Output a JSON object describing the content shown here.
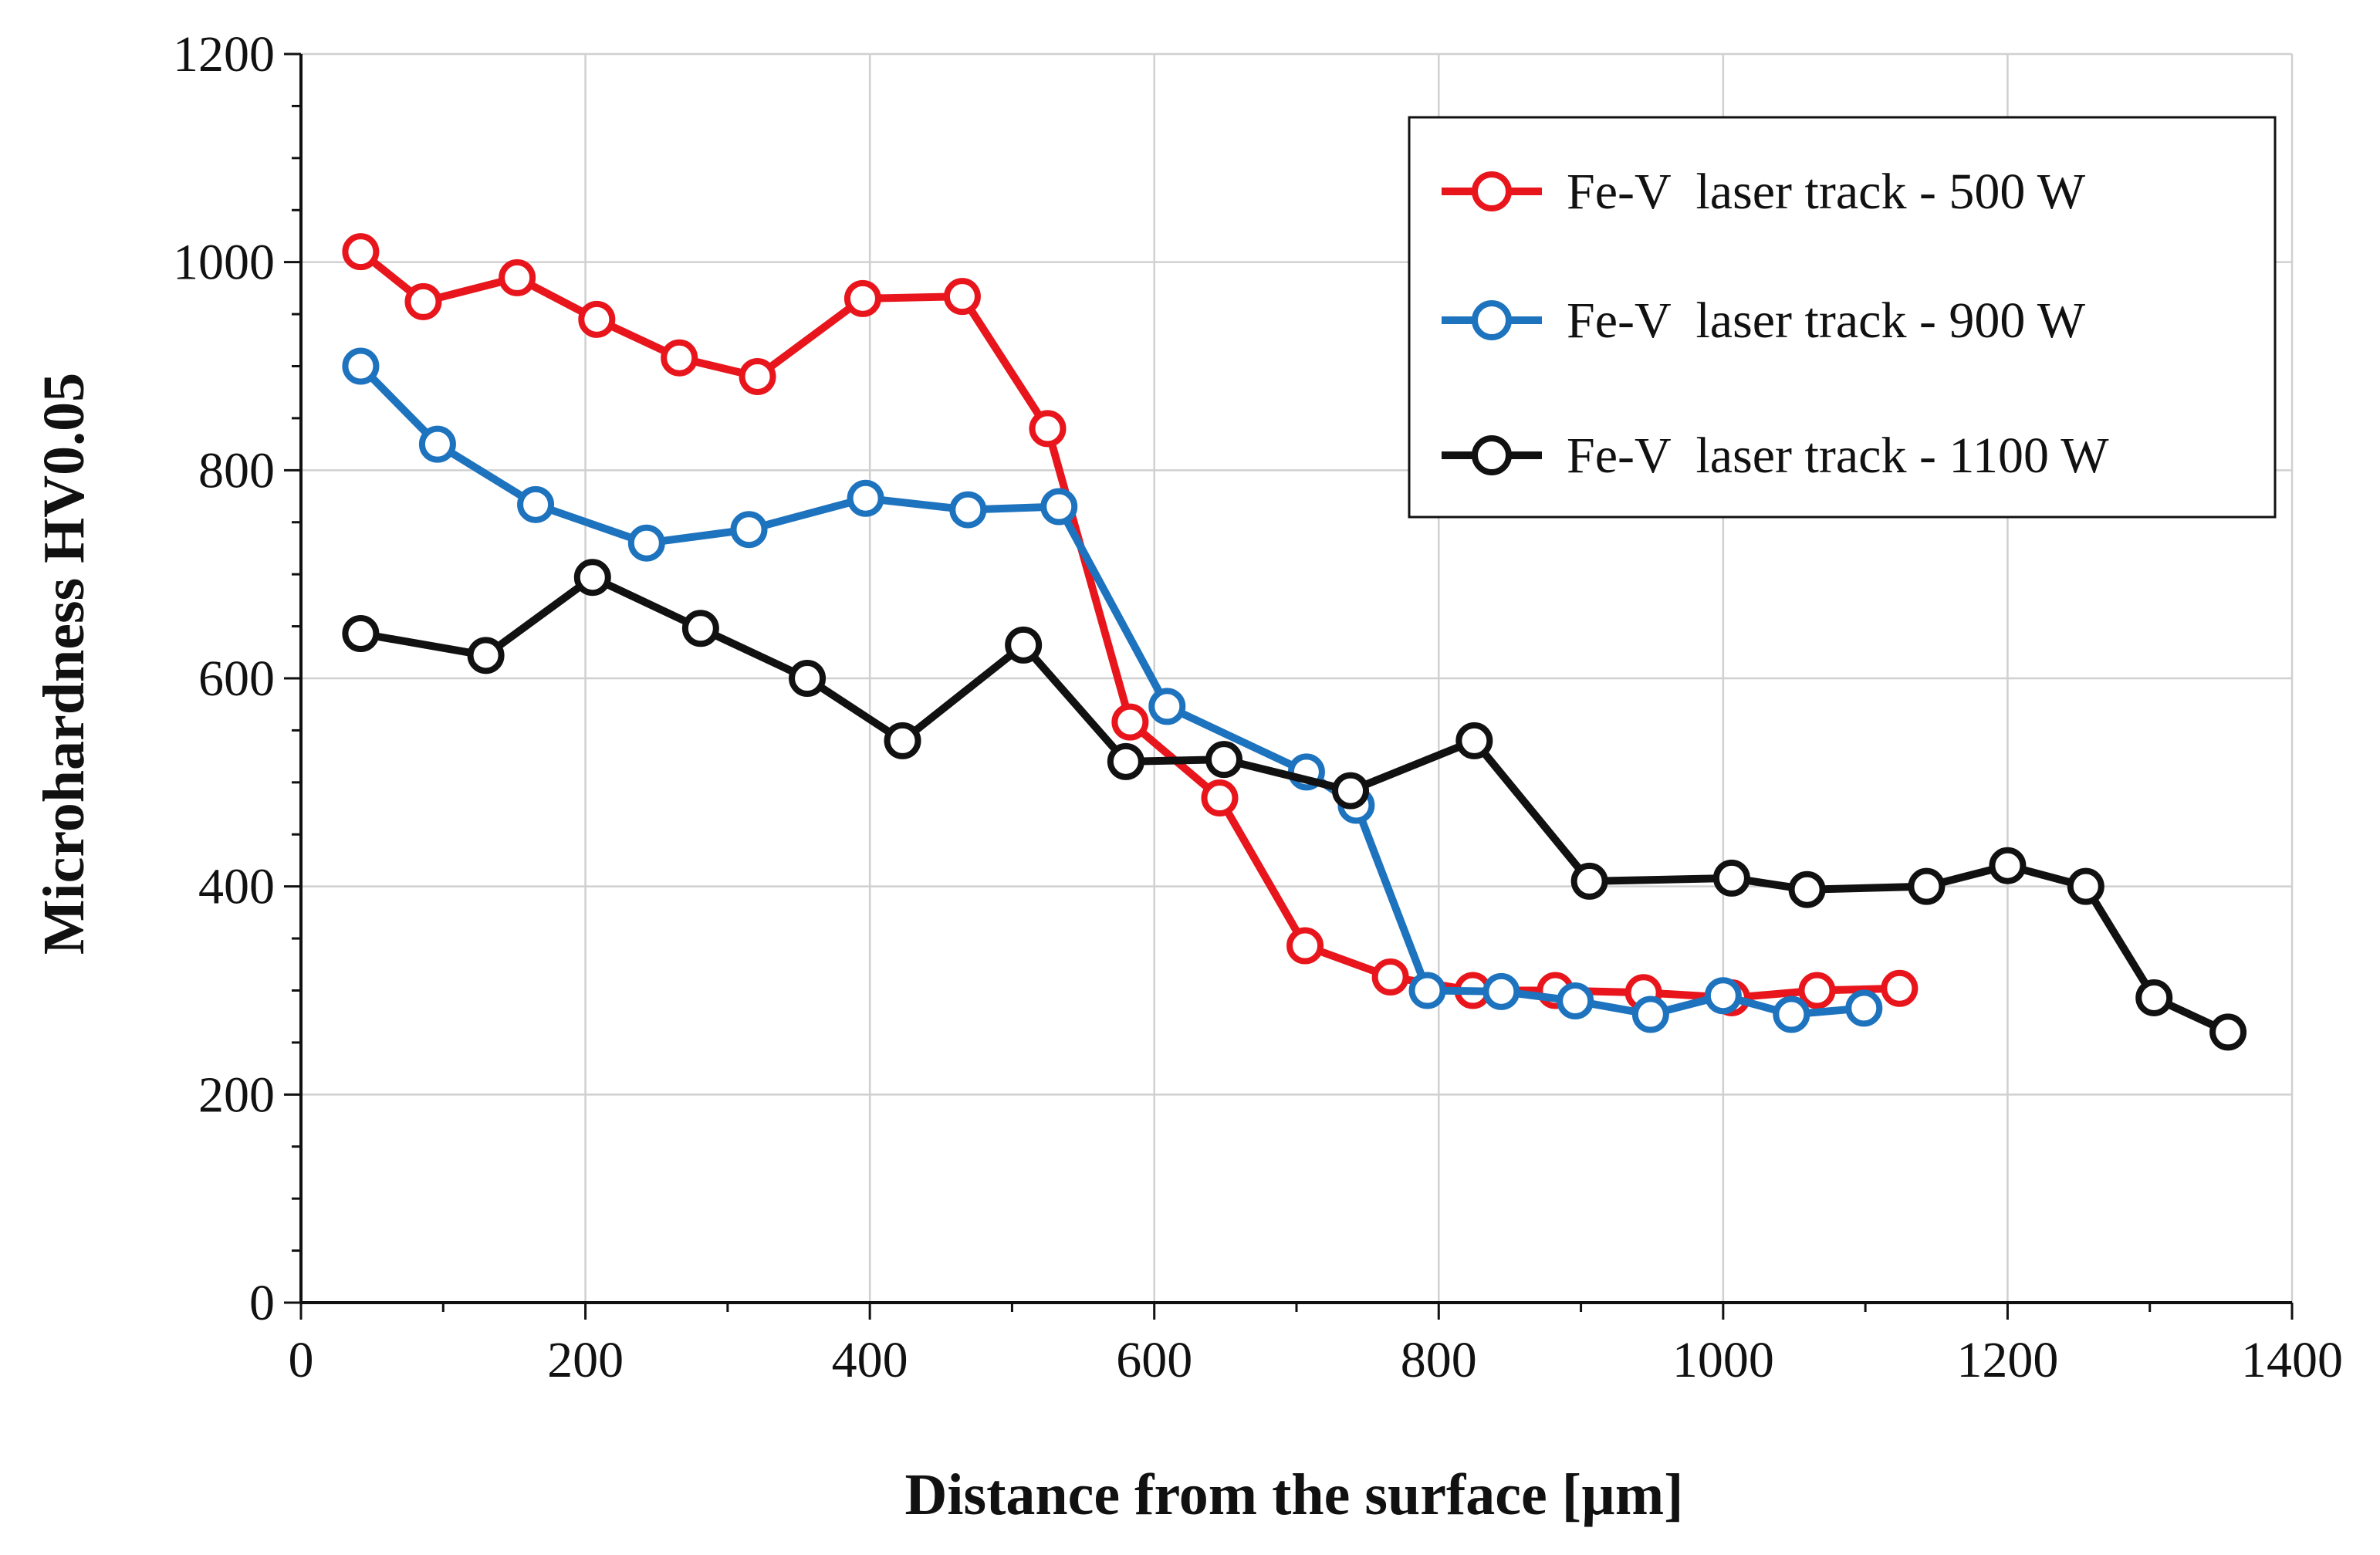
{
  "chart_data": {
    "type": "line",
    "title": "",
    "xlabel": "Distance from the surface [µm]",
    "ylabel": "Microhardness HV0.05",
    "xlim": [
      0,
      1400
    ],
    "ylim": [
      0,
      1200
    ],
    "x_ticks": [
      0,
      200,
      400,
      600,
      800,
      1000,
      1200,
      1400
    ],
    "y_ticks": [
      0,
      200,
      400,
      600,
      800,
      1000,
      1200
    ],
    "x_tick_labels": [
      "0",
      "200",
      "400",
      "600",
      "800",
      "1000",
      "1200",
      "1400"
    ],
    "y_tick_labels": [
      "0",
      "200",
      "400",
      "600",
      "800",
      "1000",
      "1200"
    ],
    "grid": true,
    "legend_position": "top-right",
    "series": [
      {
        "name": "Fe-V  laser track - 500 W",
        "color": "#e8161c",
        "x": [
          42,
          86,
          152,
          208,
          266,
          321,
          395,
          465,
          525,
          583,
          646,
          706,
          766,
          824,
          882,
          944,
          1006,
          1066,
          1124
        ],
        "y": [
          1010,
          962,
          985,
          945,
          908,
          890,
          965,
          967,
          840,
          558,
          485,
          343,
          313,
          300,
          300,
          298,
          293,
          300,
          302
        ]
      },
      {
        "name": "Fe-V  laser track - 900 W",
        "color": "#1e73be",
        "x": [
          42,
          96,
          165,
          243,
          315,
          397,
          469,
          533,
          609,
          707,
          742,
          792,
          844,
          896,
          949,
          1000,
          1048,
          1099
        ],
        "y": [
          900,
          825,
          767,
          730,
          743,
          773,
          762,
          765,
          573,
          510,
          478,
          300,
          299,
          290,
          277,
          295,
          277,
          283
        ]
      },
      {
        "name": "Fe-V  laser track - 1100 W",
        "color": "#111111",
        "x": [
          42,
          130,
          205,
          281,
          356,
          423,
          508,
          580,
          649,
          738,
          825,
          906,
          1006,
          1059,
          1143,
          1200,
          1255,
          1303,
          1355
        ],
        "y": [
          643,
          622,
          697,
          648,
          600,
          540,
          632,
          520,
          522,
          492,
          540,
          405,
          408,
          397,
          400,
          420,
          400,
          293,
          260
        ]
      }
    ]
  }
}
